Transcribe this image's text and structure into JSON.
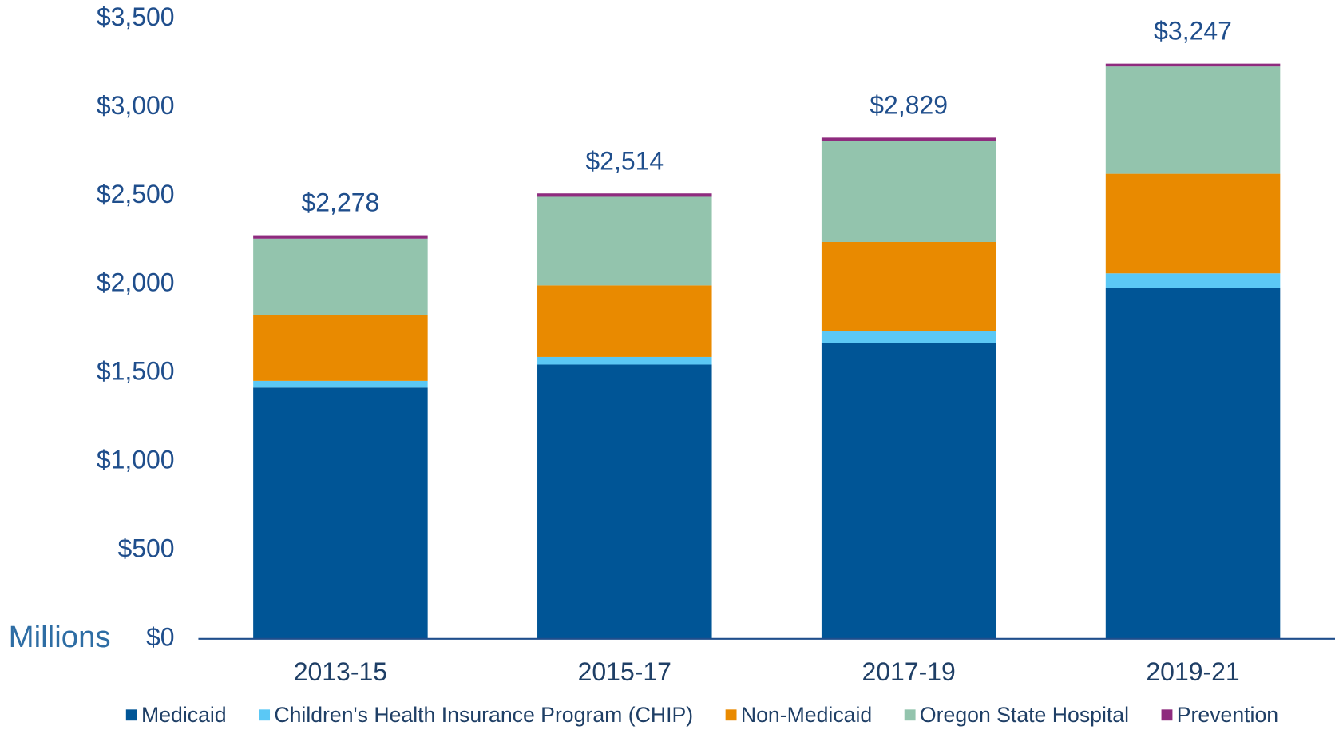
{
  "chart_data": {
    "type": "stacked_bar",
    "y_label": "Millions",
    "categories": [
      "2013-15",
      "2015-17",
      "2017-19",
      "2019-21"
    ],
    "series": [
      {
        "name": "Medicaid",
        "color": "#005596",
        "values": [
          1418,
          1548,
          1668,
          1981
        ]
      },
      {
        "name": "Children's Health Insurance Program (CHIP)",
        "color": "#5bc8f5",
        "values": [
          38,
          43,
          67,
          82
        ]
      },
      {
        "name": "Non-Medicaid",
        "color": "#e98a00",
        "values": [
          370,
          404,
          505,
          562
        ]
      },
      {
        "name": "Oregon State Hospital",
        "color": "#93c4ad",
        "values": [
          433,
          500,
          572,
          606
        ]
      },
      {
        "name": "Prevention",
        "color": "#8e2b7e",
        "values": [
          19,
          19,
          17,
          16
        ]
      }
    ],
    "totals": [
      2278,
      2514,
      2829,
      3247
    ],
    "total_labels": [
      "$2,278",
      "$2,514",
      "$2,829",
      "$3,247"
    ],
    "ylim": [
      0,
      3500
    ],
    "yticks": [
      {
        "value": 0,
        "label": "$0"
      },
      {
        "value": 500,
        "label": "$500"
      },
      {
        "value": 1000,
        "label": "$1,000"
      },
      {
        "value": 1500,
        "label": "$1,500"
      },
      {
        "value": 2000,
        "label": "$2,000"
      },
      {
        "value": 2500,
        "label": "$2,500"
      },
      {
        "value": 3000,
        "label": "$3,000"
      },
      {
        "value": 3500,
        "label": "$3,500"
      }
    ],
    "legend": "bottom"
  }
}
